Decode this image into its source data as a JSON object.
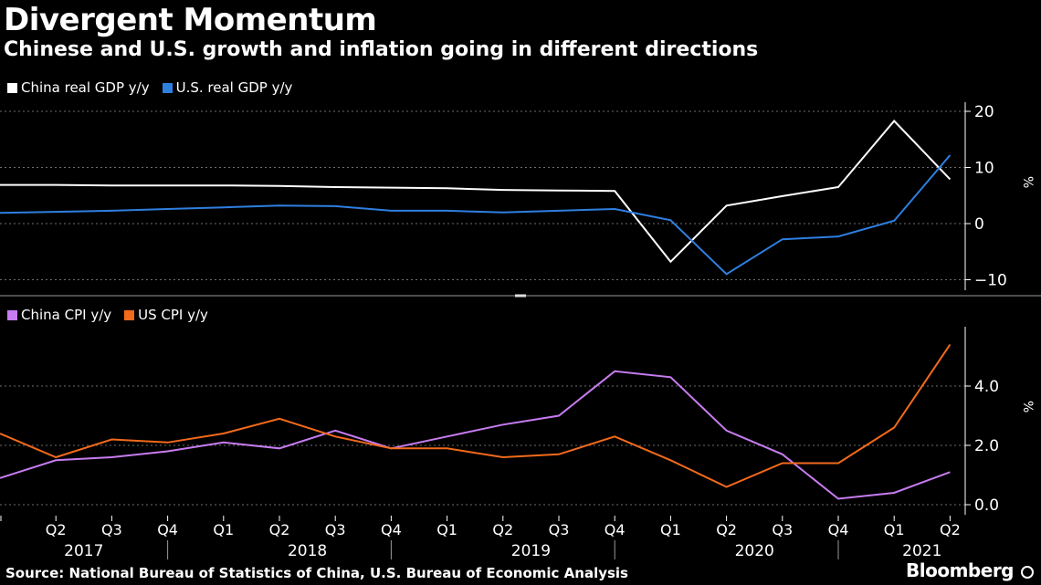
{
  "title": "Divergent Momentum",
  "subtitle": "Chinese and U.S. growth and inflation going in different directions",
  "source": "Source: National Bureau of Statistics of China, U.S. Bureau of Economic Analysis",
  "brand": "Bloomberg",
  "colors": {
    "china_gdp": "#ffffff",
    "us_gdp": "#2f7fe0",
    "china_cpi": "#c77cf0",
    "us_cpi": "#f26a1b"
  },
  "chart_data": [
    {
      "type": "line",
      "ylabel": "%",
      "ylim": [
        -11,
        21
      ],
      "yticks": [
        -10,
        0,
        10,
        20
      ],
      "ytick_labels": [
        "−10",
        "0",
        "10",
        "20"
      ],
      "grid": true,
      "legend": "top-left",
      "x": [
        "2017 Q1",
        "2017 Q2",
        "2017 Q3",
        "2017 Q4",
        "2018 Q1",
        "2018 Q2",
        "2018 Q3",
        "2018 Q4",
        "2019 Q1",
        "2019 Q2",
        "2019 Q3",
        "2019 Q4",
        "2020 Q1",
        "2020 Q2",
        "2020 Q3",
        "2020 Q4",
        "2021 Q1",
        "2021 Q2"
      ],
      "series": [
        {
          "name": "China real GDP y/y",
          "values": [
            6.9,
            6.9,
            6.8,
            6.8,
            6.8,
            6.7,
            6.5,
            6.4,
            6.3,
            6.0,
            5.9,
            5.8,
            -6.8,
            3.2,
            4.9,
            6.5,
            18.3,
            7.9
          ]
        },
        {
          "name": "U.S. real GDP y/y",
          "values": [
            1.9,
            2.1,
            2.3,
            2.6,
            2.9,
            3.2,
            3.1,
            2.3,
            2.3,
            2.0,
            2.3,
            2.6,
            0.6,
            -9.0,
            -2.8,
            -2.3,
            0.5,
            12.2
          ]
        }
      ]
    },
    {
      "type": "line",
      "ylabel": "%",
      "ylim": [
        -0.2,
        5.8
      ],
      "yticks": [
        0,
        2,
        4
      ],
      "ytick_labels": [
        "0.0",
        "2.0",
        "4.0"
      ],
      "grid": true,
      "legend": "top-left",
      "x": [
        "2017 Q1",
        "2017 Q2",
        "2017 Q3",
        "2017 Q4",
        "2018 Q1",
        "2018 Q2",
        "2018 Q3",
        "2018 Q4",
        "2019 Q1",
        "2019 Q2",
        "2019 Q3",
        "2019 Q4",
        "2020 Q1",
        "2020 Q2",
        "2020 Q3",
        "2020 Q4",
        "2021 Q1",
        "2021 Q2"
      ],
      "series": [
        {
          "name": "China CPI y/y",
          "values": [
            0.9,
            1.5,
            1.6,
            1.8,
            2.1,
            1.9,
            2.5,
            1.9,
            2.3,
            2.7,
            3.0,
            4.5,
            4.3,
            2.5,
            1.7,
            0.2,
            0.4,
            1.1
          ]
        },
        {
          "name": "US CPI y/y",
          "values": [
            2.4,
            1.6,
            2.2,
            2.1,
            2.4,
            2.9,
            2.3,
            1.9,
            1.9,
            1.6,
            1.7,
            2.3,
            1.5,
            0.6,
            1.4,
            1.4,
            2.6,
            5.4
          ]
        }
      ]
    }
  ],
  "x_axis": {
    "quarter_labels": [
      "Q2",
      "Q3",
      "Q4",
      "Q1",
      "Q2",
      "Q3",
      "Q4",
      "Q1",
      "Q2",
      "Q3",
      "Q4",
      "Q1",
      "Q2",
      "Q3",
      "Q4",
      "Q1",
      "Q2"
    ],
    "years": [
      "2017",
      "2018",
      "2019",
      "2020",
      "2021"
    ]
  }
}
